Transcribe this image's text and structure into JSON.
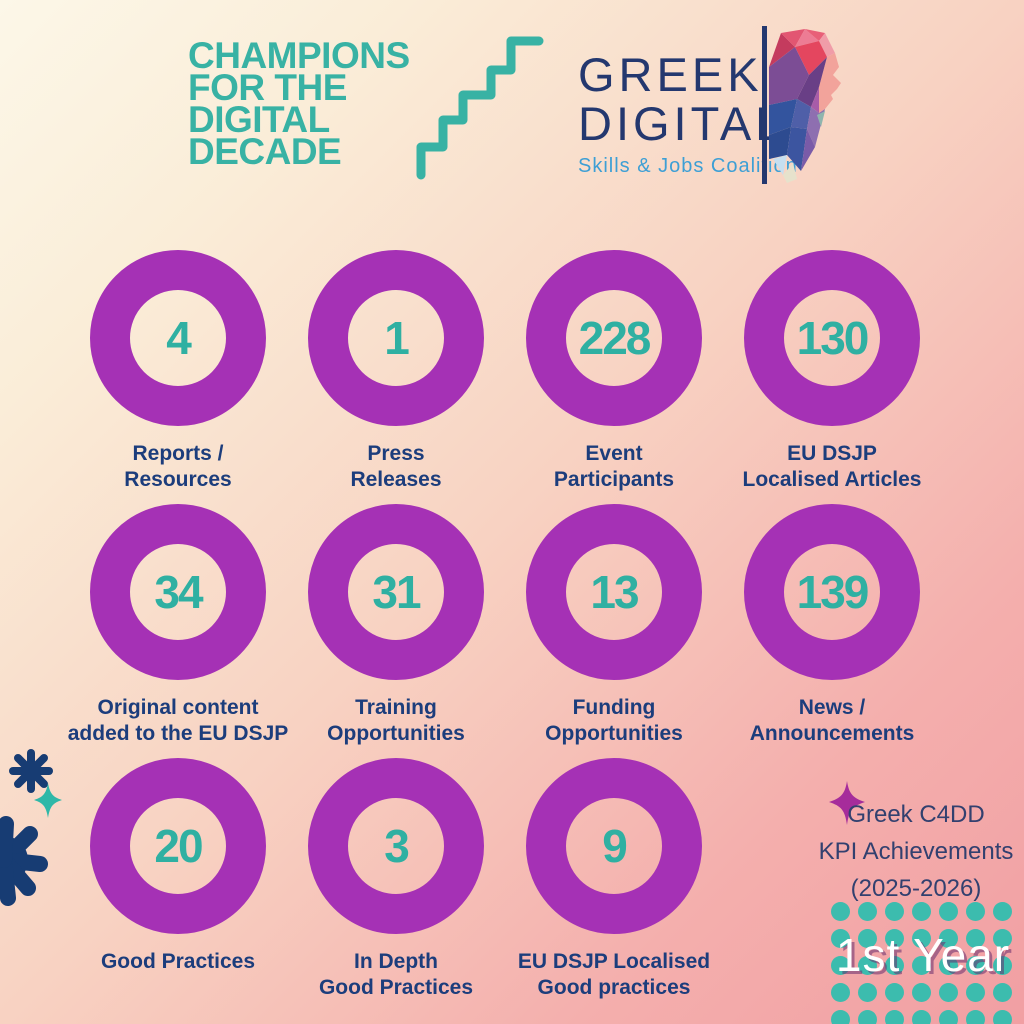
{
  "header": {
    "title_lines": [
      "CHAMPIONS",
      "FOR THE",
      "DIGITAL",
      "DECADE"
    ],
    "logo": {
      "line1": "GREEK",
      "line2": "DIGITAL",
      "tagline": "Skills & Jobs Coalition"
    }
  },
  "kpis": [
    {
      "value": "4",
      "lines": [
        "Reports /",
        "Resources"
      ]
    },
    {
      "value": "1",
      "lines": [
        "Press",
        "Releases"
      ]
    },
    {
      "value": "228",
      "lines": [
        "Event",
        "Participants"
      ]
    },
    {
      "value": "130",
      "lines": [
        "EU DSJP",
        "Localised Articles"
      ]
    },
    {
      "value": "34",
      "lines": [
        "Original content",
        "added to the EU DSJP"
      ]
    },
    {
      "value": "31",
      "lines": [
        "Training",
        "Opportunities"
      ]
    },
    {
      "value": "13",
      "lines": [
        "Funding",
        "Opportunities"
      ]
    },
    {
      "value": "139",
      "lines": [
        "News /",
        "Announcements"
      ]
    },
    {
      "value": "20",
      "lines": [
        "Good Practices"
      ]
    },
    {
      "value": "3",
      "lines": [
        "In Depth",
        "Good Practices"
      ]
    },
    {
      "value": "9",
      "lines": [
        "EU DSJP Localised",
        "Good practices"
      ]
    }
  ],
  "footer": {
    "caption_lines": [
      "Greek C4DD",
      "KPI Achievements",
      "(2025-2026)"
    ],
    "year_label": "1st Year"
  },
  "colors": {
    "background_top": "#FCF7E8",
    "background_bottom": "#F19FA3",
    "ring_purple": "#A531B5",
    "number_teal": "#2FB0A2",
    "label_navy": "#1C3D7C",
    "title_teal": "#38B2A4",
    "logo_navy": "#24386F",
    "tagline_blue": "#3D9FD5",
    "dot_teal": "#3CBCAE",
    "sparkle_magenta": "#A62C9B",
    "deco_navy": "#173C73"
  },
  "chart_data": {
    "type": "table",
    "title": "Greek C4DD KPI Achievements (2025-2026)",
    "subtitle": "1st Year",
    "categories": [
      "Reports / Resources",
      "Press Releases",
      "Event Participants",
      "EU DSJP Localised Articles",
      "Original content added to the EU DSJP",
      "Training Opportunities",
      "Funding Opportunities",
      "News / Announcements",
      "Good Practices",
      "In Depth Good Practices",
      "EU DSJP Localised Good practices"
    ],
    "values": [
      4,
      1,
      228,
      130,
      34,
      31,
      13,
      139,
      20,
      3,
      9
    ]
  }
}
